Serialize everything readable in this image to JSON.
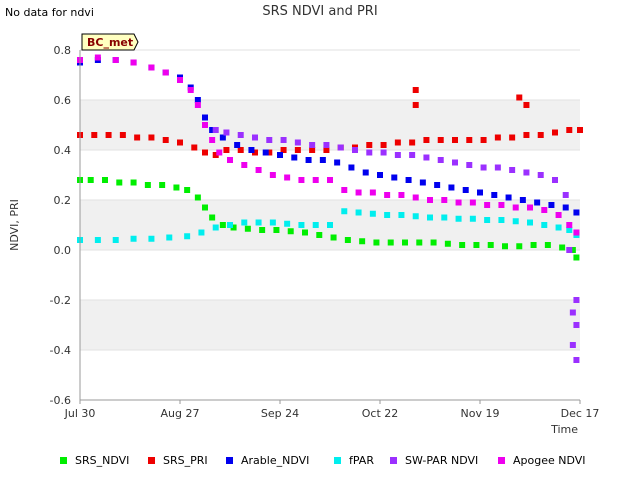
{
  "header": {
    "nodata_text": "No data for ndvi",
    "title": "SRS NDVI and PRI"
  },
  "badge": {
    "text": "BC_met"
  },
  "chart_data": {
    "type": "scatter",
    "title": "SRS NDVI and PRI",
    "xlabel": "Time",
    "ylabel": "NDVI, PRI",
    "x_tick_labels": [
      "Jul 30",
      "Aug 27",
      "Sep 24",
      "Oct 22",
      "Nov 19",
      "Dec 17"
    ],
    "x_range": [
      "2023-07-30",
      "2023-12-17"
    ],
    "ylim": [
      -0.6,
      0.8
    ],
    "y_ticks": [
      -0.6,
      -0.4,
      -0.2,
      0.0,
      0.2,
      0.4,
      0.6,
      0.8
    ],
    "y_tick_labels": [
      "-0.6",
      "-0.4",
      "-0.2",
      "0.0",
      "0.2",
      "0.4",
      "0.6",
      "0.8"
    ],
    "shaded_bands": [
      [
        -0.4,
        -0.2
      ],
      [
        0.0,
        0.2
      ],
      [
        0.4,
        0.6
      ]
    ],
    "legend_position": "bottom",
    "series": [
      {
        "name": "SRS_NDVI",
        "color": "#00ee00",
        "points": [
          [
            "2023-07-30",
            0.28
          ],
          [
            "2023-08-02",
            0.28
          ],
          [
            "2023-08-06",
            0.28
          ],
          [
            "2023-08-10",
            0.27
          ],
          [
            "2023-08-14",
            0.27
          ],
          [
            "2023-08-18",
            0.26
          ],
          [
            "2023-08-22",
            0.26
          ],
          [
            "2023-08-26",
            0.25
          ],
          [
            "2023-08-29",
            0.24
          ],
          [
            "2023-09-01",
            0.21
          ],
          [
            "2023-09-03",
            0.17
          ],
          [
            "2023-09-05",
            0.13
          ],
          [
            "2023-09-08",
            0.1
          ],
          [
            "2023-09-11",
            0.09
          ],
          [
            "2023-09-15",
            0.085
          ],
          [
            "2023-09-19",
            0.08
          ],
          [
            "2023-09-23",
            0.08
          ],
          [
            "2023-09-27",
            0.075
          ],
          [
            "2023-10-01",
            0.07
          ],
          [
            "2023-10-05",
            0.06
          ],
          [
            "2023-10-09",
            0.05
          ],
          [
            "2023-10-13",
            0.04
          ],
          [
            "2023-10-17",
            0.035
          ],
          [
            "2023-10-21",
            0.03
          ],
          [
            "2023-10-25",
            0.03
          ],
          [
            "2023-10-29",
            0.03
          ],
          [
            "2023-11-02",
            0.03
          ],
          [
            "2023-11-06",
            0.03
          ],
          [
            "2023-11-10",
            0.025
          ],
          [
            "2023-11-14",
            0.02
          ],
          [
            "2023-11-18",
            0.02
          ],
          [
            "2023-11-22",
            0.02
          ],
          [
            "2023-11-26",
            0.015
          ],
          [
            "2023-11-30",
            0.015
          ],
          [
            "2023-12-04",
            0.02
          ],
          [
            "2023-12-08",
            0.02
          ],
          [
            "2023-12-12",
            0.01
          ],
          [
            "2023-12-15",
            0.0
          ],
          [
            "2023-12-16",
            -0.03
          ]
        ]
      },
      {
        "name": "SRS_PRI",
        "color": "#ee0000",
        "points": [
          [
            "2023-07-30",
            0.46
          ],
          [
            "2023-08-03",
            0.46
          ],
          [
            "2023-08-07",
            0.46
          ],
          [
            "2023-08-11",
            0.46
          ],
          [
            "2023-08-15",
            0.45
          ],
          [
            "2023-08-19",
            0.45
          ],
          [
            "2023-08-23",
            0.44
          ],
          [
            "2023-08-27",
            0.43
          ],
          [
            "2023-08-31",
            0.41
          ],
          [
            "2023-09-03",
            0.39
          ],
          [
            "2023-09-06",
            0.38
          ],
          [
            "2023-09-09",
            0.4
          ],
          [
            "2023-09-13",
            0.4
          ],
          [
            "2023-09-17",
            0.39
          ],
          [
            "2023-09-21",
            0.39
          ],
          [
            "2023-09-25",
            0.4
          ],
          [
            "2023-09-29",
            0.4
          ],
          [
            "2023-10-03",
            0.4
          ],
          [
            "2023-10-07",
            0.4
          ],
          [
            "2023-10-11",
            0.41
          ],
          [
            "2023-10-15",
            0.41
          ],
          [
            "2023-10-19",
            0.42
          ],
          [
            "2023-10-23",
            0.42
          ],
          [
            "2023-10-27",
            0.43
          ],
          [
            "2023-10-31",
            0.43
          ],
          [
            "2023-11-04",
            0.44
          ],
          [
            "2023-11-08",
            0.44
          ],
          [
            "2023-11-12",
            0.44
          ],
          [
            "2023-11-16",
            0.44
          ],
          [
            "2023-11-20",
            0.44
          ],
          [
            "2023-11-24",
            0.45
          ],
          [
            "2023-11-28",
            0.45
          ],
          [
            "2023-12-02",
            0.46
          ],
          [
            "2023-12-06",
            0.46
          ],
          [
            "2023-12-10",
            0.47
          ],
          [
            "2023-12-14",
            0.48
          ],
          [
            "2023-12-17",
            0.48
          ],
          [
            "2023-11-01",
            0.64
          ],
          [
            "2023-11-01",
            0.58
          ],
          [
            "2023-11-30",
            0.61
          ],
          [
            "2023-12-02",
            0.58
          ]
        ]
      },
      {
        "name": "Arable_NDVI",
        "color": "#0000ee",
        "points": [
          [
            "2023-07-30",
            0.75
          ],
          [
            "2023-08-04",
            0.76
          ],
          [
            "2023-08-09",
            0.76
          ],
          [
            "2023-08-14",
            0.75
          ],
          [
            "2023-08-19",
            0.73
          ],
          [
            "2023-08-23",
            0.71
          ],
          [
            "2023-08-27",
            0.69
          ],
          [
            "2023-08-30",
            0.65
          ],
          [
            "2023-09-01",
            0.6
          ],
          [
            "2023-09-03",
            0.53
          ],
          [
            "2023-09-05",
            0.48
          ],
          [
            "2023-09-08",
            0.45
          ],
          [
            "2023-09-12",
            0.42
          ],
          [
            "2023-09-16",
            0.4
          ],
          [
            "2023-09-20",
            0.39
          ],
          [
            "2023-09-24",
            0.38
          ],
          [
            "2023-09-28",
            0.37
          ],
          [
            "2023-10-02",
            0.36
          ],
          [
            "2023-10-06",
            0.36
          ],
          [
            "2023-10-10",
            0.35
          ],
          [
            "2023-10-14",
            0.33
          ],
          [
            "2023-10-18",
            0.31
          ],
          [
            "2023-10-22",
            0.3
          ],
          [
            "2023-10-26",
            0.29
          ],
          [
            "2023-10-30",
            0.28
          ],
          [
            "2023-11-03",
            0.27
          ],
          [
            "2023-11-07",
            0.26
          ],
          [
            "2023-11-11",
            0.25
          ],
          [
            "2023-11-15",
            0.24
          ],
          [
            "2023-11-19",
            0.23
          ],
          [
            "2023-11-23",
            0.22
          ],
          [
            "2023-11-27",
            0.21
          ],
          [
            "2023-12-01",
            0.2
          ],
          [
            "2023-12-05",
            0.19
          ],
          [
            "2023-12-09",
            0.18
          ],
          [
            "2023-12-13",
            0.17
          ],
          [
            "2023-12-16",
            0.15
          ]
        ]
      },
      {
        "name": "fPAR",
        "color": "#00eeee",
        "points": [
          [
            "2023-07-30",
            0.04
          ],
          [
            "2023-08-04",
            0.04
          ],
          [
            "2023-08-09",
            0.04
          ],
          [
            "2023-08-14",
            0.045
          ],
          [
            "2023-08-19",
            0.045
          ],
          [
            "2023-08-24",
            0.05
          ],
          [
            "2023-08-29",
            0.055
          ],
          [
            "2023-09-02",
            0.07
          ],
          [
            "2023-09-06",
            0.09
          ],
          [
            "2023-09-10",
            0.1
          ],
          [
            "2023-09-14",
            0.11
          ],
          [
            "2023-09-18",
            0.11
          ],
          [
            "2023-09-22",
            0.11
          ],
          [
            "2023-09-26",
            0.105
          ],
          [
            "2023-09-30",
            0.1
          ],
          [
            "2023-10-04",
            0.1
          ],
          [
            "2023-10-08",
            0.1
          ],
          [
            "2023-10-12",
            0.155
          ],
          [
            "2023-10-16",
            0.15
          ],
          [
            "2023-10-20",
            0.145
          ],
          [
            "2023-10-24",
            0.14
          ],
          [
            "2023-10-28",
            0.14
          ],
          [
            "2023-11-01",
            0.135
          ],
          [
            "2023-11-05",
            0.13
          ],
          [
            "2023-11-09",
            0.13
          ],
          [
            "2023-11-13",
            0.125
          ],
          [
            "2023-11-17",
            0.125
          ],
          [
            "2023-11-21",
            0.12
          ],
          [
            "2023-11-25",
            0.12
          ],
          [
            "2023-11-29",
            0.115
          ],
          [
            "2023-12-03",
            0.11
          ],
          [
            "2023-12-07",
            0.1
          ],
          [
            "2023-12-11",
            0.09
          ],
          [
            "2023-12-14",
            0.08
          ],
          [
            "2023-12-16",
            0.06
          ]
        ]
      },
      {
        "name": "SW-PAR NDVI",
        "color": "#9b30ff",
        "points": [
          [
            "2023-09-06",
            0.48
          ],
          [
            "2023-09-09",
            0.47
          ],
          [
            "2023-09-13",
            0.46
          ],
          [
            "2023-09-17",
            0.45
          ],
          [
            "2023-09-21",
            0.44
          ],
          [
            "2023-09-25",
            0.44
          ],
          [
            "2023-09-29",
            0.43
          ],
          [
            "2023-10-03",
            0.42
          ],
          [
            "2023-10-07",
            0.42
          ],
          [
            "2023-10-11",
            0.41
          ],
          [
            "2023-10-15",
            0.4
          ],
          [
            "2023-10-19",
            0.39
          ],
          [
            "2023-10-23",
            0.39
          ],
          [
            "2023-10-27",
            0.38
          ],
          [
            "2023-10-31",
            0.38
          ],
          [
            "2023-11-04",
            0.37
          ],
          [
            "2023-11-08",
            0.36
          ],
          [
            "2023-11-12",
            0.35
          ],
          [
            "2023-11-16",
            0.34
          ],
          [
            "2023-11-20",
            0.33
          ],
          [
            "2023-11-24",
            0.33
          ],
          [
            "2023-11-28",
            0.32
          ],
          [
            "2023-12-02",
            0.31
          ],
          [
            "2023-12-06",
            0.3
          ],
          [
            "2023-12-10",
            0.28
          ],
          [
            "2023-12-13",
            0.22
          ],
          [
            "2023-12-14",
            0.0
          ],
          [
            "2023-12-15",
            -0.25
          ],
          [
            "2023-12-15",
            -0.38
          ],
          [
            "2023-12-16",
            -0.2
          ],
          [
            "2023-12-16",
            -0.44
          ],
          [
            "2023-12-16",
            -0.3
          ]
        ]
      },
      {
        "name": "Apogee NDVI",
        "color": "#ee00ee",
        "points": [
          [
            "2023-07-30",
            0.76
          ],
          [
            "2023-08-04",
            0.77
          ],
          [
            "2023-08-09",
            0.76
          ],
          [
            "2023-08-14",
            0.75
          ],
          [
            "2023-08-19",
            0.73
          ],
          [
            "2023-08-23",
            0.71
          ],
          [
            "2023-08-27",
            0.68
          ],
          [
            "2023-08-30",
            0.64
          ],
          [
            "2023-09-01",
            0.58
          ],
          [
            "2023-09-03",
            0.5
          ],
          [
            "2023-09-05",
            0.44
          ],
          [
            "2023-09-07",
            0.39
          ],
          [
            "2023-09-10",
            0.36
          ],
          [
            "2023-09-14",
            0.34
          ],
          [
            "2023-09-18",
            0.32
          ],
          [
            "2023-09-22",
            0.3
          ],
          [
            "2023-09-26",
            0.29
          ],
          [
            "2023-09-30",
            0.28
          ],
          [
            "2023-10-04",
            0.28
          ],
          [
            "2023-10-08",
            0.28
          ],
          [
            "2023-10-12",
            0.24
          ],
          [
            "2023-10-16",
            0.23
          ],
          [
            "2023-10-20",
            0.23
          ],
          [
            "2023-10-24",
            0.22
          ],
          [
            "2023-10-28",
            0.22
          ],
          [
            "2023-11-01",
            0.21
          ],
          [
            "2023-11-05",
            0.2
          ],
          [
            "2023-11-09",
            0.2
          ],
          [
            "2023-11-13",
            0.19
          ],
          [
            "2023-11-17",
            0.19
          ],
          [
            "2023-11-21",
            0.18
          ],
          [
            "2023-11-25",
            0.18
          ],
          [
            "2023-11-29",
            0.17
          ],
          [
            "2023-12-03",
            0.17
          ],
          [
            "2023-12-07",
            0.16
          ],
          [
            "2023-12-11",
            0.14
          ],
          [
            "2023-12-14",
            0.1
          ],
          [
            "2023-12-16",
            0.07
          ]
        ]
      }
    ]
  }
}
